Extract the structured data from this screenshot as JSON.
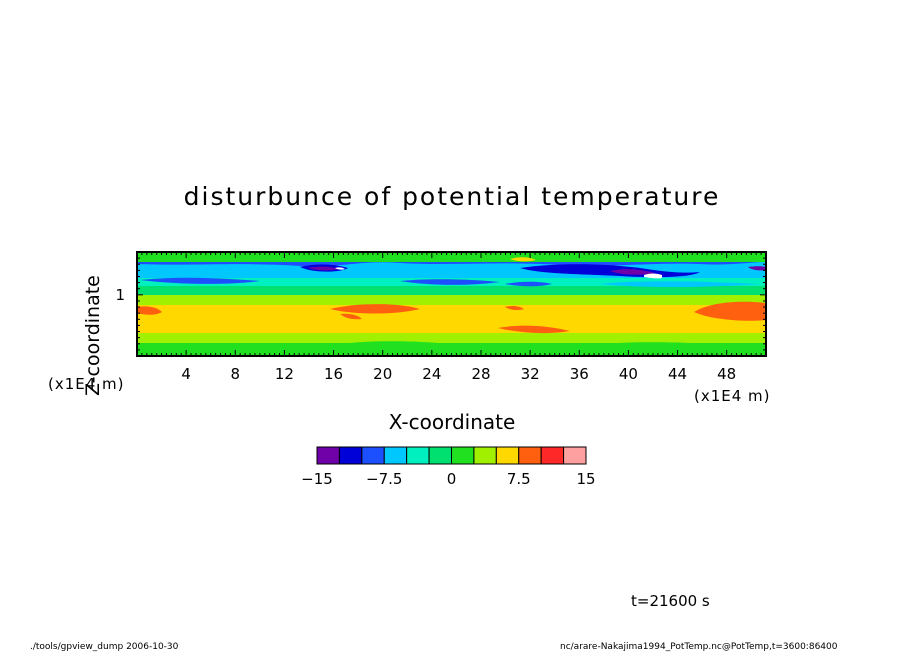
{
  "chart_data": {
    "type": "heatmap",
    "title": "disturbunce of potential temperature",
    "xlabel": "X-coordinate",
    "ylabel": "Z-coordinate",
    "xunit": "(x1E4 m)",
    "yunit": "(x1E4 m)",
    "xlim": [
      0,
      51.2
    ],
    "ylim": [
      0,
      1.7
    ],
    "x_ticks": [
      "4",
      "8",
      "12",
      "16",
      "20",
      "24",
      "28",
      "32",
      "36",
      "40",
      "44",
      "48"
    ],
    "y_ticks": [
      "1"
    ],
    "colorbar": {
      "levels": [
        -15,
        -12.5,
        -10,
        -7.5,
        -5,
        -2.5,
        0,
        2.5,
        5,
        7.5,
        10,
        12.5,
        15
      ],
      "tick_labels": [
        "−15",
        "−7.5",
        "0",
        "7.5",
        "15"
      ],
      "colors": [
        "#7000a8",
        "#0000d8",
        "#1c50ff",
        "#00c8ff",
        "#00f0c0",
        "#00e070",
        "#20e020",
        "#a0f000",
        "#ffd800",
        "#ff6010",
        "#ff2828",
        "#ffa0a0"
      ]
    },
    "bands": [
      {
        "z_range": [
          1.56,
          1.7
        ],
        "level": "0 to 2.5"
      },
      {
        "z_range": [
          1.45,
          1.56
        ],
        "level": "-5 to -2.5"
      },
      {
        "z_range": [
          1.34,
          1.45
        ],
        "level": "-2.5 to 0"
      },
      {
        "z_range": [
          1.22,
          1.34
        ],
        "level": "0 to 2.5"
      },
      {
        "z_range": [
          1.05,
          1.22
        ],
        "level": "2.5 to 5"
      },
      {
        "z_range": [
          0.4,
          1.05
        ],
        "level": "5 to 7.5"
      },
      {
        "z_range": [
          0.2,
          0.4
        ],
        "level": "2.5 to 5"
      },
      {
        "z_range": [
          0,
          0.2
        ],
        "level": "0 to 2.5"
      }
    ]
  },
  "annotations": {
    "time": "t=21600 s",
    "footer_left": "./tools/gpview_dump  2006-10-30",
    "footer_right": "nc/arare-Nakajima1994_PotTemp.nc@PotTemp,t=3600:86400"
  }
}
